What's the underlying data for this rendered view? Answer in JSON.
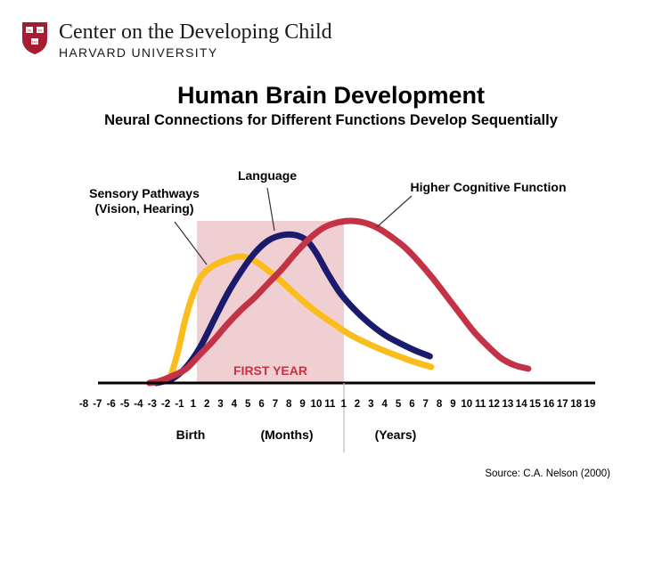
{
  "org": {
    "name": "Center on the Developing Child",
    "sub": "HARVARD UNIVERSITY",
    "shield_text": [
      "VE",
      "RI",
      "TAS"
    ]
  },
  "colors": {
    "sensory": "#fbbd1d",
    "language": "#1b1b6e",
    "cognitive": "#c33345",
    "first_year": "#f0cfd2",
    "first_year_label": "#c33345",
    "shield": "#a61c30"
  },
  "chart_data": {
    "type": "line",
    "title": "Human Brain Development",
    "subtitle": "Neural Connections for Different Functions Develop Sequentially",
    "x_ticks": [
      "-8",
      "-7",
      "-6",
      "-5",
      "-4",
      "-3",
      "-2",
      "-1",
      "1",
      "2",
      "3",
      "4",
      "5",
      "6",
      "7",
      "8",
      "9",
      "10",
      "11",
      "1",
      "2",
      "3",
      "4",
      "5",
      "6",
      "7",
      "8",
      "9",
      "10",
      "11",
      "12",
      "13",
      "14",
      "15",
      "16",
      "17",
      "18",
      "19"
    ],
    "x_axis_groups": [
      {
        "label": "Birth"
      },
      {
        "label": "(Months)"
      },
      {
        "label": "(Years)"
      }
    ],
    "highlight_region": {
      "label": "FIRST YEAR",
      "from": "1 month",
      "to": "1 year"
    },
    "series": [
      {
        "name": "Sensory Pathways\n(Vision, Hearing)",
        "color_key": "sensory",
        "points": [
          [
            6.3,
            4
          ],
          [
            6.9,
            36
          ],
          [
            7.4,
            70
          ],
          [
            8.0,
            100
          ],
          [
            8.6,
            120
          ],
          [
            9.5,
            132
          ],
          [
            10.4,
            138
          ],
          [
            11.4,
            142
          ],
          [
            12.4,
            138
          ],
          [
            13.5,
            126
          ],
          [
            14.6,
            112
          ],
          [
            15.8,
            95
          ],
          [
            17.0,
            80
          ],
          [
            18.3,
            66
          ],
          [
            19.5,
            54
          ],
          [
            20.8,
            44
          ],
          [
            22.0,
            36
          ],
          [
            23.2,
            29
          ],
          [
            24.3,
            23
          ],
          [
            25.4,
            18
          ]
        ]
      },
      {
        "name": "Language",
        "color_key": "language",
        "points": [
          [
            5.3,
            0
          ],
          [
            6.5,
            5
          ],
          [
            7.5,
            18
          ],
          [
            8.5,
            40
          ],
          [
            9.5,
            70
          ],
          [
            10.5,
            100
          ],
          [
            11.5,
            125
          ],
          [
            12.5,
            146
          ],
          [
            13.5,
            160
          ],
          [
            14.5,
            166
          ],
          [
            15.5,
            166
          ],
          [
            16.3,
            160
          ],
          [
            17.0,
            146
          ],
          [
            17.8,
            124
          ],
          [
            18.7,
            102
          ],
          [
            19.7,
            84
          ],
          [
            20.8,
            68
          ],
          [
            22.0,
            54
          ],
          [
            23.2,
            44
          ],
          [
            24.3,
            36
          ],
          [
            25.3,
            30
          ]
        ]
      },
      {
        "name": "Higher Cognitive Function",
        "color_key": "cognitive",
        "points": [
          [
            4.8,
            0
          ],
          [
            5.5,
            2
          ],
          [
            6.5,
            8
          ],
          [
            7.5,
            16
          ],
          [
            8.5,
            32
          ],
          [
            9.5,
            48
          ],
          [
            10.5,
            66
          ],
          [
            11.5,
            82
          ],
          [
            12.5,
            96
          ],
          [
            13.5,
            112
          ],
          [
            14.5,
            128
          ],
          [
            15.5,
            146
          ],
          [
            16.5,
            162
          ],
          [
            17.5,
            174
          ],
          [
            18.5,
            180
          ],
          [
            19.5,
            182
          ],
          [
            20.5,
            180
          ],
          [
            21.5,
            174
          ],
          [
            22.5,
            164
          ],
          [
            23.5,
            152
          ],
          [
            24.5,
            136
          ],
          [
            25.5,
            118
          ],
          [
            26.5,
            98
          ],
          [
            27.5,
            78
          ],
          [
            28.5,
            58
          ],
          [
            29.5,
            42
          ],
          [
            30.5,
            28
          ],
          [
            31.5,
            20
          ],
          [
            32.5,
            16
          ]
        ]
      }
    ],
    "annotations": [
      {
        "series": "Sensory Pathways\n(Vision, Hearing)"
      },
      {
        "series": "Language"
      },
      {
        "series": "Higher Cognitive Function"
      }
    ],
    "source": "Source: C.A. Nelson (2000)"
  }
}
